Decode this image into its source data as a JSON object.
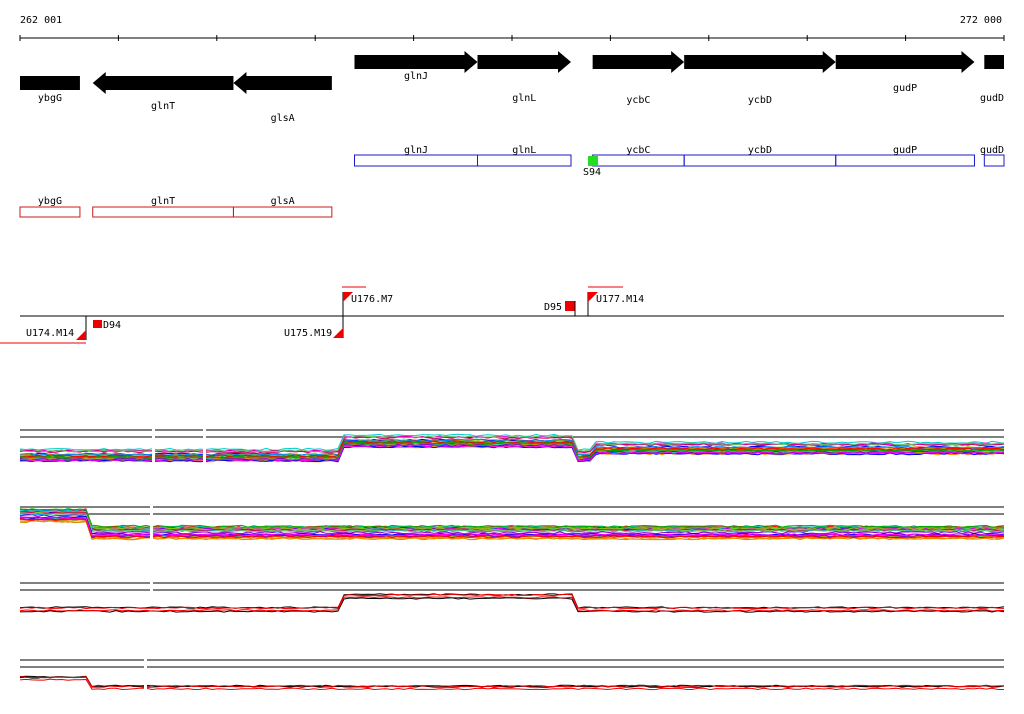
{
  "ruler": {
    "start_label": "262 001",
    "end_label": "272 000",
    "start": 262001,
    "end": 272000
  },
  "colors": {
    "gene_fill": "#000000",
    "forward_box": "#1a1acc",
    "reverse_box": "#cc1a1a",
    "marker_red": "#ee0000",
    "marker_green": "#22dd22",
    "axis": "#000000"
  },
  "genes_forward": [
    {
      "name": "glnJ",
      "start": 265400,
      "end": 266650
    },
    {
      "name": "glnL",
      "start": 266650,
      "end": 267600
    },
    {
      "name": "ycbC",
      "start": 267820,
      "end": 268750
    },
    {
      "name": "ycbD",
      "start": 268750,
      "end": 270290
    },
    {
      "name": "gudP",
      "start": 270290,
      "end": 271700
    },
    {
      "name": "gudD",
      "start": 271800,
      "end": 272000
    }
  ],
  "genes_reverse": [
    {
      "name": "ybgG",
      "start": 262001,
      "end": 262610
    },
    {
      "name": "glnT",
      "start": 262740,
      "end": 264170
    },
    {
      "name": "glsA",
      "start": 264170,
      "end": 265170
    }
  ],
  "green_marker": {
    "label": "S94",
    "position": 267780
  },
  "annotations": [
    {
      "label": "U174.M14",
      "position": 262660,
      "strand": "-"
    },
    {
      "label": "D94",
      "position": 262780,
      "strand": "-"
    },
    {
      "label": "U175.M19",
      "position": 265230,
      "strand": "-"
    },
    {
      "label": "U176.M7",
      "position": 265240,
      "strand": "+"
    },
    {
      "label": "D95",
      "position": 267630,
      "strand": "-"
    },
    {
      "label": "U177.M14",
      "position": 267720,
      "strand": "+"
    }
  ]
}
